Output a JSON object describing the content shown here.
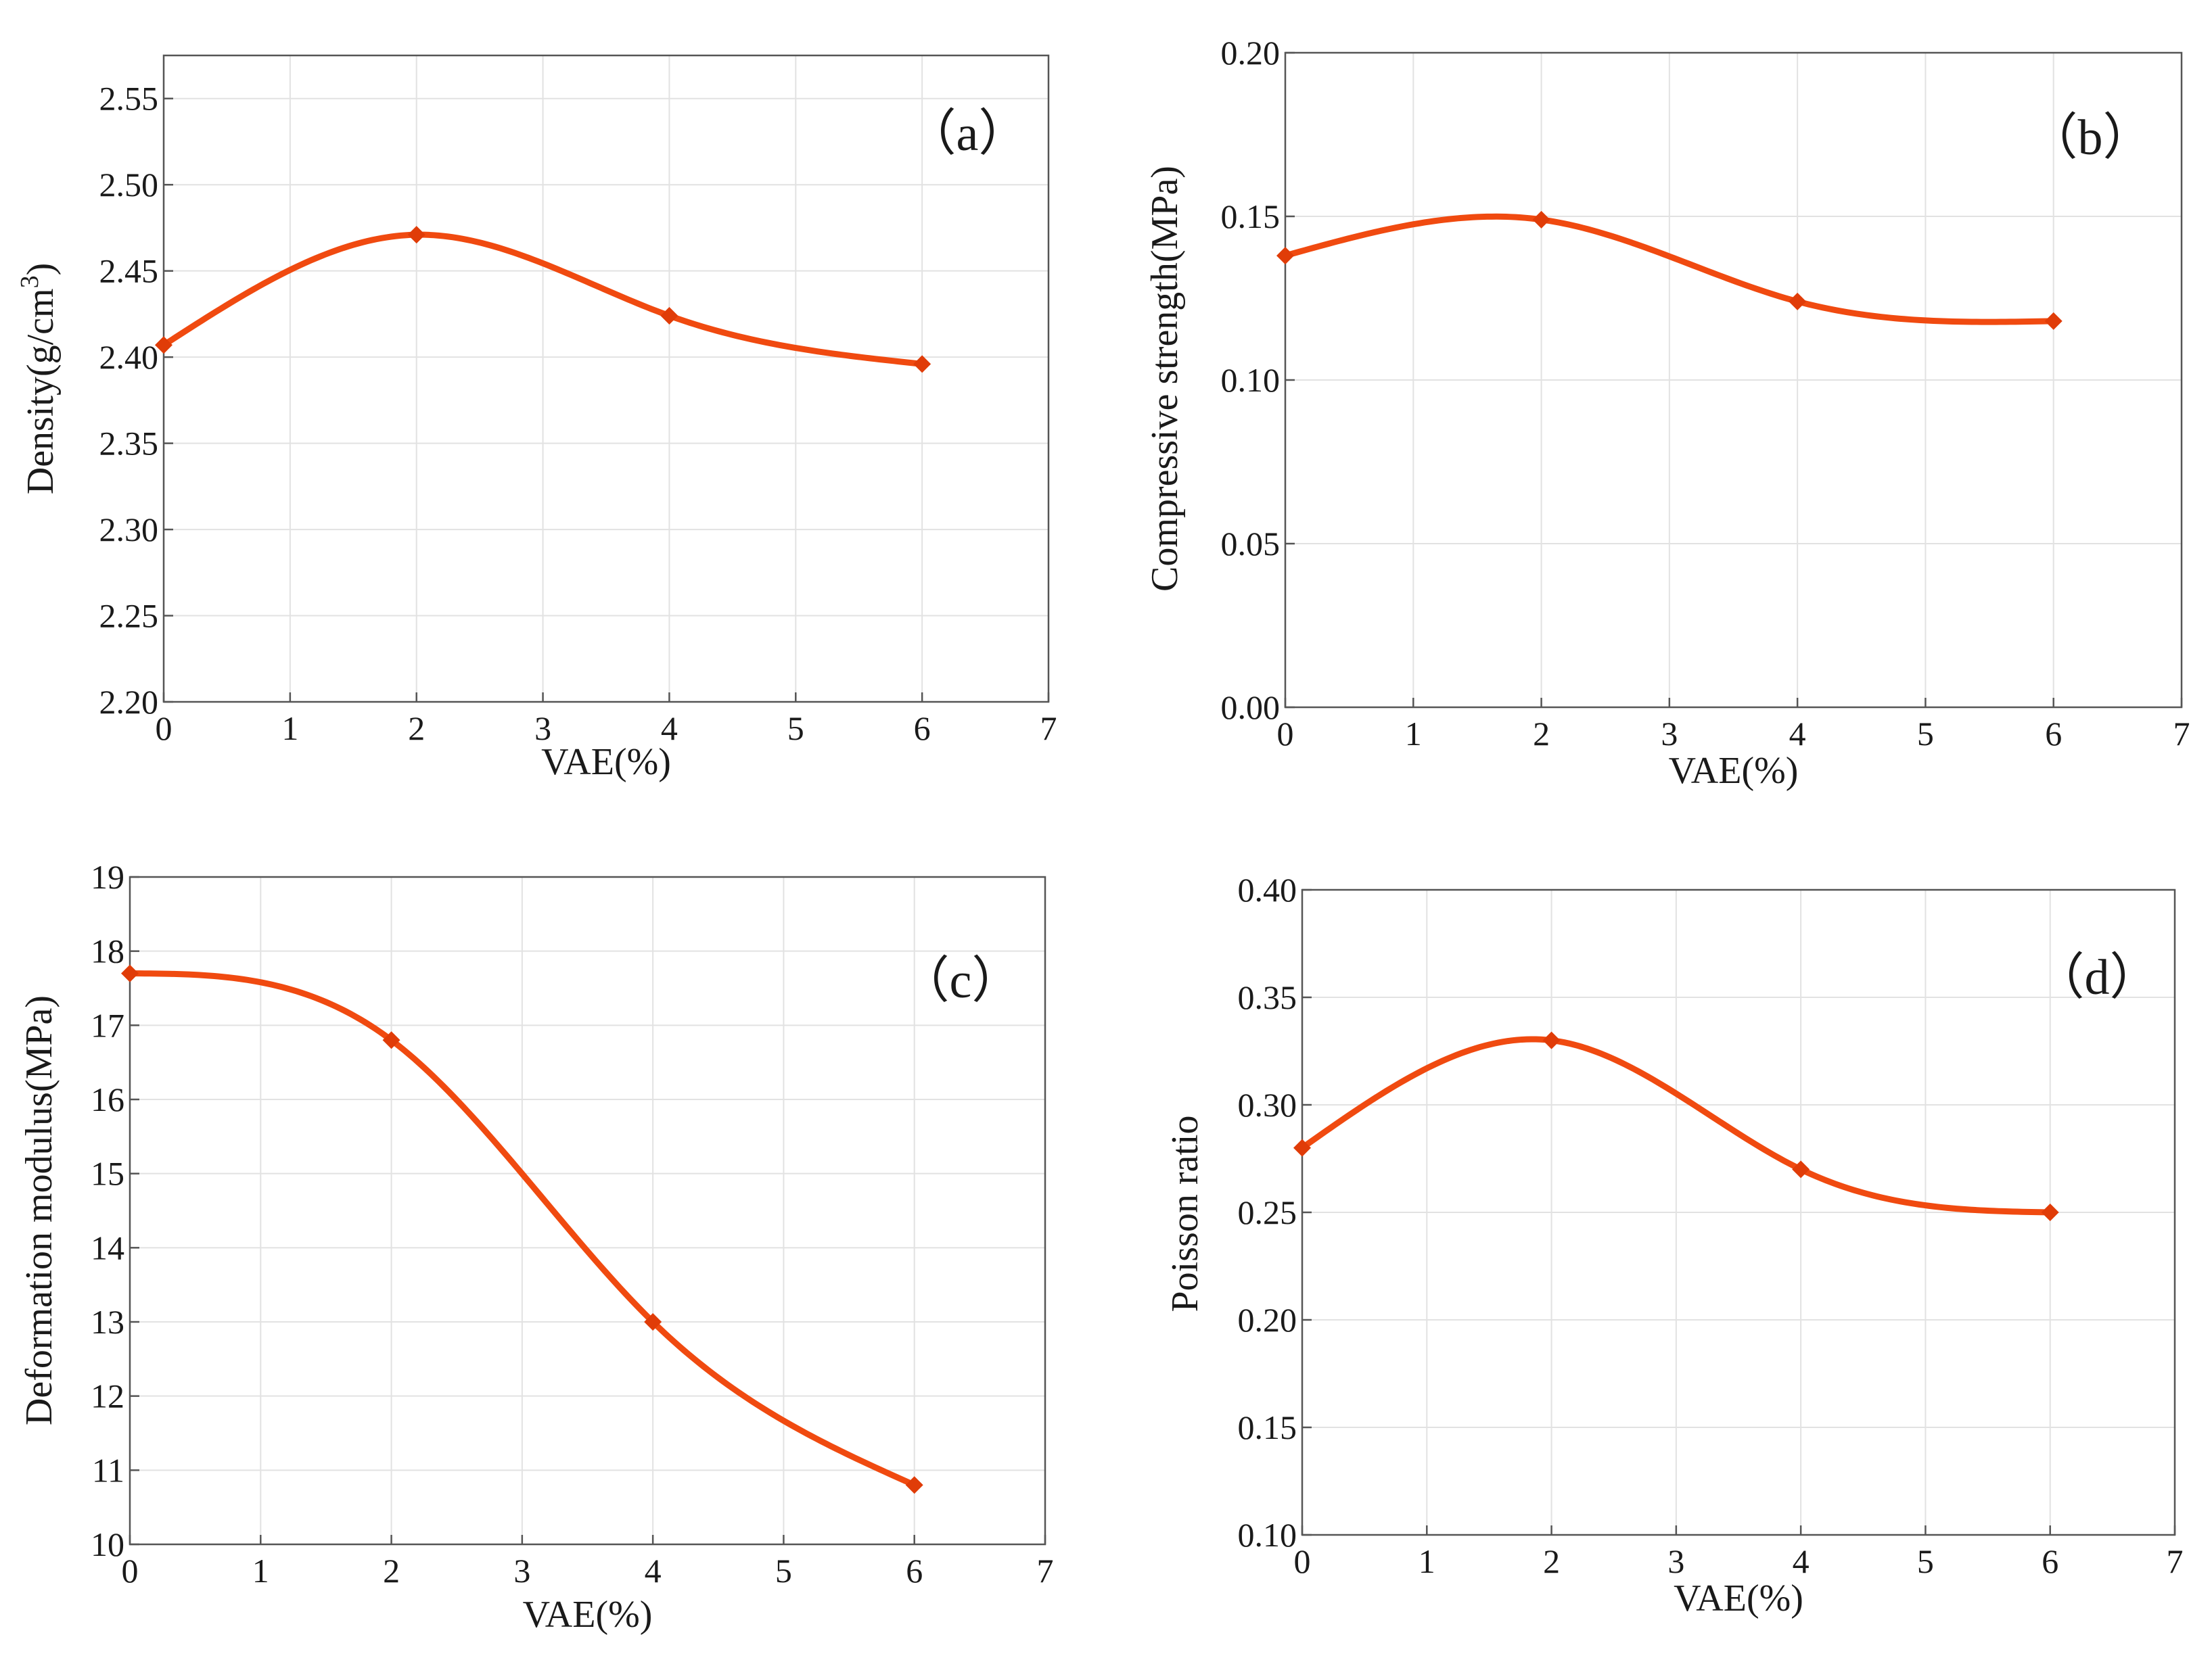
{
  "chart_data": [
    {
      "type": "line",
      "panel_label": "（a）",
      "xlabel": "VAE(%)",
      "ylabel": "Density(g/cm",
      "ylabel_sup": "3",
      "ylabel_end": ")",
      "x": [
        0,
        2,
        4,
        6
      ],
      "series": [
        {
          "name": "Density",
          "values": [
            2.407,
            2.471,
            2.424,
            2.396
          ]
        }
      ],
      "xlim": [
        0,
        7
      ],
      "ylim": [
        2.2,
        2.575
      ],
      "xticks": [
        "0",
        "1",
        "2",
        "3",
        "4",
        "5",
        "6",
        "7"
      ],
      "yticks": [
        "2.20",
        "2.25",
        "2.30",
        "2.35",
        "2.40",
        "2.45",
        "2.50",
        "2.55"
      ],
      "ytick_values": [
        2.2,
        2.25,
        2.3,
        2.35,
        2.4,
        2.45,
        2.5,
        2.55
      ],
      "grid": true
    },
    {
      "type": "line",
      "panel_label": "（b）",
      "xlabel": "VAE(%)",
      "ylabel": "Compressive strength(MPa)",
      "ylabel_sup": "",
      "ylabel_end": "",
      "x": [
        0,
        2,
        4,
        6
      ],
      "series": [
        {
          "name": "Compressive strength",
          "values": [
            0.138,
            0.149,
            0.124,
            0.118
          ]
        }
      ],
      "xlim": [
        0,
        7
      ],
      "ylim": [
        0,
        0.2
      ],
      "xticks": [
        "0",
        "1",
        "2",
        "3",
        "4",
        "5",
        "6",
        "7"
      ],
      "yticks": [
        "0.00",
        "0.05",
        "0.10",
        "0.15",
        "0.20"
      ],
      "ytick_values": [
        0,
        0.05,
        0.1,
        0.15,
        0.2
      ],
      "grid": true
    },
    {
      "type": "line",
      "panel_label": "（c）",
      "xlabel": "VAE(%)",
      "ylabel": "Deformation modulus(MPa)",
      "ylabel_sup": "",
      "ylabel_end": "",
      "x": [
        0,
        2,
        4,
        6
      ],
      "series": [
        {
          "name": "Deformation modulus",
          "values": [
            17.7,
            16.8,
            13.0,
            10.8
          ]
        }
      ],
      "xlim": [
        0,
        7
      ],
      "ylim": [
        10,
        19
      ],
      "xticks": [
        "0",
        "1",
        "2",
        "3",
        "4",
        "5",
        "6",
        "7"
      ],
      "yticks": [
        "10",
        "11",
        "12",
        "13",
        "14",
        "15",
        "16",
        "17",
        "18",
        "19"
      ],
      "ytick_values": [
        10,
        11,
        12,
        13,
        14,
        15,
        16,
        17,
        18,
        19
      ],
      "grid": true
    },
    {
      "type": "line",
      "panel_label": "（d）",
      "xlabel": "VAE(%)",
      "ylabel": "Poisson ratio",
      "ylabel_sup": "",
      "ylabel_end": "",
      "x": [
        0,
        2,
        4,
        6
      ],
      "series": [
        {
          "name": "Poisson ratio",
          "values": [
            0.28,
            0.33,
            0.27,
            0.25
          ]
        }
      ],
      "xlim": [
        0,
        7
      ],
      "ylim": [
        0.1,
        0.4
      ],
      "xticks": [
        "0",
        "1",
        "2",
        "3",
        "4",
        "5",
        "6",
        "7"
      ],
      "yticks": [
        "0.10",
        "0.15",
        "0.20",
        "0.25",
        "0.30",
        "0.35",
        "0.40"
      ],
      "ytick_values": [
        0.1,
        0.15,
        0.2,
        0.25,
        0.3,
        0.35,
        0.4
      ],
      "grid": true
    }
  ],
  "colors": {
    "series": "#f04a10",
    "marker": "#e03c08"
  }
}
